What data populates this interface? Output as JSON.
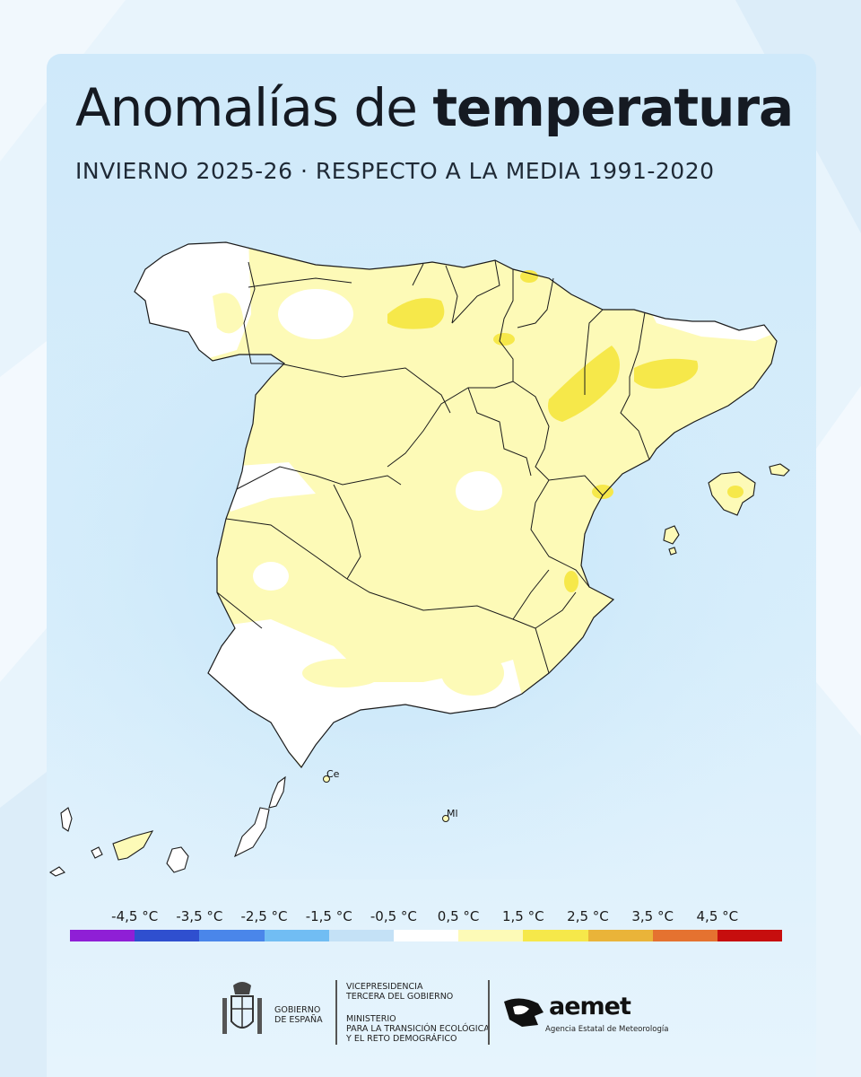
{
  "title": {
    "light": "Anomalías de",
    "bold": "temperatura"
  },
  "subtitle": "INVIERNO 2025-26 · RESPECTO A LA MEDIA 1991-2020",
  "map_labels": {
    "ceuta": "Ce",
    "melilla": "Ml"
  },
  "legend": {
    "ticks": [
      "-4,5 °C",
      "-3,5 °C",
      "-2,5 °C",
      "-1,5 °C",
      "-0,5 °C",
      "0,5 °C",
      "1,5 °C",
      "2,5 °C",
      "3,5 °C",
      "4,5 °C"
    ],
    "colors": [
      "#8f1fd6",
      "#2f4fcf",
      "#4a86ea",
      "#71bdf3",
      "#c4e1f6",
      "#ffffff",
      "#fdfab7",
      "#f6e84a",
      "#eab439",
      "#e57230",
      "#c70e0e"
    ]
  },
  "map_colors": {
    "neutral": "#ffffff",
    "slight_warm": "#fdfab7",
    "warm": "#f6e84a",
    "border": "#1b1b1b"
  },
  "footer": {
    "gov_line1": "GOBIERNO",
    "gov_line2": "DE ESPAÑA",
    "vice_line1": "VICEPRESIDENCIA",
    "vice_line2": "TERCERA DEL GOBIERNO",
    "min_line1": "MINISTERIO",
    "min_line2": "PARA LA TRANSICIÓN ECOLÓGICA",
    "min_line3": "Y EL RETO DEMOGRÁFICO",
    "aemet_name": "aemet",
    "aemet_sub": "Agencia Estatal de Meteorología"
  }
}
